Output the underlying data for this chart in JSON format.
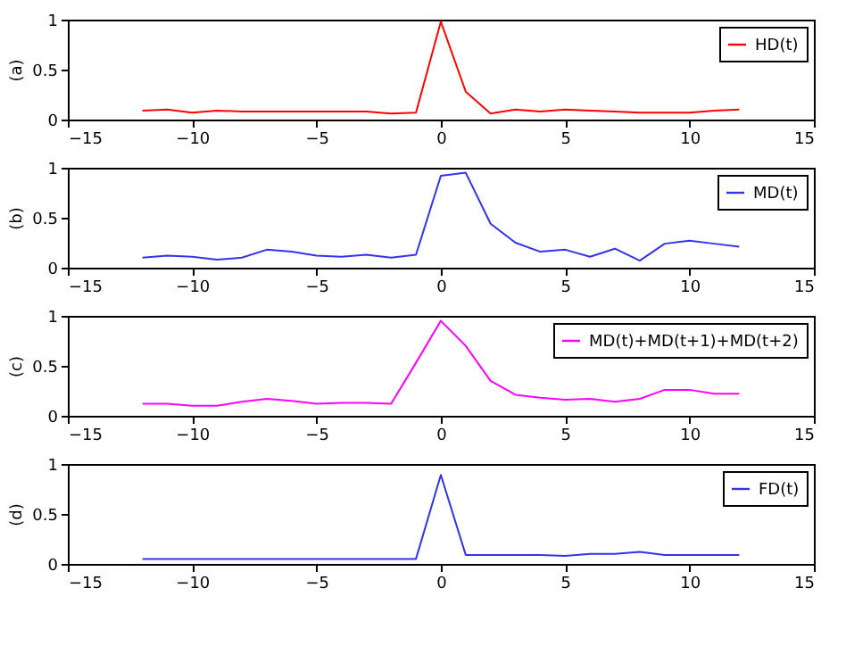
{
  "chart_data": [
    {
      "type": "line",
      "ylabel": "(a)",
      "x": [
        -12,
        -11,
        -10,
        -9,
        -8,
        -7,
        -6,
        -5,
        -4,
        -3,
        -2,
        -1,
        0,
        1,
        2,
        3,
        4,
        5,
        6,
        7,
        8,
        9,
        10,
        11,
        12
      ],
      "xlim": [
        -15,
        15
      ],
      "xticks": [
        -15,
        -10,
        -5,
        0,
        5,
        10,
        15
      ],
      "ylim": [
        0,
        1
      ],
      "yticks": [
        0,
        0.5,
        1
      ],
      "legend": "top right",
      "grid": false,
      "series": [
        {
          "name": "HD(t)",
          "color": "#ff0000",
          "values": [
            0.09,
            0.1,
            0.07,
            0.09,
            0.08,
            0.08,
            0.08,
            0.08,
            0.08,
            0.08,
            0.06,
            0.07,
            0.98,
            0.28,
            0.06,
            0.1,
            0.08,
            0.1,
            0.09,
            0.08,
            0.07,
            0.07,
            0.07,
            0.09,
            0.1
          ]
        }
      ]
    },
    {
      "type": "line",
      "ylabel": "(b)",
      "x": [
        -12,
        -11,
        -10,
        -9,
        -8,
        -7,
        -6,
        -5,
        -4,
        -3,
        -2,
        -1,
        0,
        1,
        2,
        3,
        4,
        5,
        6,
        7,
        8,
        9,
        10,
        11,
        12
      ],
      "xlim": [
        -15,
        15
      ],
      "xticks": [
        -15,
        -10,
        -5,
        0,
        5,
        10,
        15
      ],
      "ylim": [
        0,
        1
      ],
      "yticks": [
        0,
        0.5,
        1
      ],
      "legend": "top right",
      "grid": false,
      "series": [
        {
          "name": "MD(t)",
          "color": "#3333ee",
          "values": [
            0.1,
            0.12,
            0.11,
            0.08,
            0.1,
            0.18,
            0.16,
            0.12,
            0.11,
            0.13,
            0.1,
            0.13,
            0.92,
            0.95,
            0.44,
            0.25,
            0.16,
            0.18,
            0.11,
            0.19,
            0.07,
            0.24,
            0.27,
            0.24,
            0.21
          ]
        }
      ]
    },
    {
      "type": "line",
      "ylabel": "(c)",
      "x": [
        -12,
        -11,
        -10,
        -9,
        -8,
        -7,
        -6,
        -5,
        -4,
        -3,
        -2,
        -1,
        0,
        1,
        2,
        3,
        4,
        5,
        6,
        7,
        8,
        9,
        10,
        11,
        12
      ],
      "xlim": [
        -15,
        15
      ],
      "xticks": [
        -15,
        -10,
        -5,
        0,
        5,
        10,
        15
      ],
      "ylim": [
        0,
        1
      ],
      "yticks": [
        0,
        0.5,
        1
      ],
      "legend": "top right",
      "grid": false,
      "series": [
        {
          "name": "MD(t)+MD(t+1)+MD(t+2)",
          "color": "#ff00ff",
          "values": [
            0.12,
            0.12,
            0.1,
            0.1,
            0.14,
            0.17,
            0.15,
            0.12,
            0.13,
            0.13,
            0.12,
            0.53,
            0.95,
            0.7,
            0.35,
            0.21,
            0.18,
            0.16,
            0.17,
            0.14,
            0.17,
            0.26,
            0.26,
            0.22,
            0.22
          ]
        }
      ]
    },
    {
      "type": "line",
      "ylabel": "(d)",
      "x": [
        -12,
        -11,
        -10,
        -9,
        -8,
        -7,
        -6,
        -5,
        -4,
        -3,
        -2,
        -1,
        0,
        1,
        2,
        3,
        4,
        5,
        6,
        7,
        8,
        9,
        10,
        11,
        12
      ],
      "xlim": [
        -15,
        15
      ],
      "xticks": [
        -15,
        -10,
        -5,
        0,
        5,
        10,
        15
      ],
      "ylim": [
        0,
        1
      ],
      "yticks": [
        0,
        0.5,
        1
      ],
      "legend": "top right",
      "grid": false,
      "series": [
        {
          "name": "FD(t)",
          "color": "#3333ee",
          "values": [
            0.05,
            0.05,
            0.05,
            0.05,
            0.05,
            0.05,
            0.05,
            0.05,
            0.05,
            0.05,
            0.05,
            0.05,
            0.89,
            0.09,
            0.09,
            0.09,
            0.09,
            0.08,
            0.1,
            0.1,
            0.12,
            0.09,
            0.09,
            0.09,
            0.09
          ]
        }
      ]
    }
  ]
}
